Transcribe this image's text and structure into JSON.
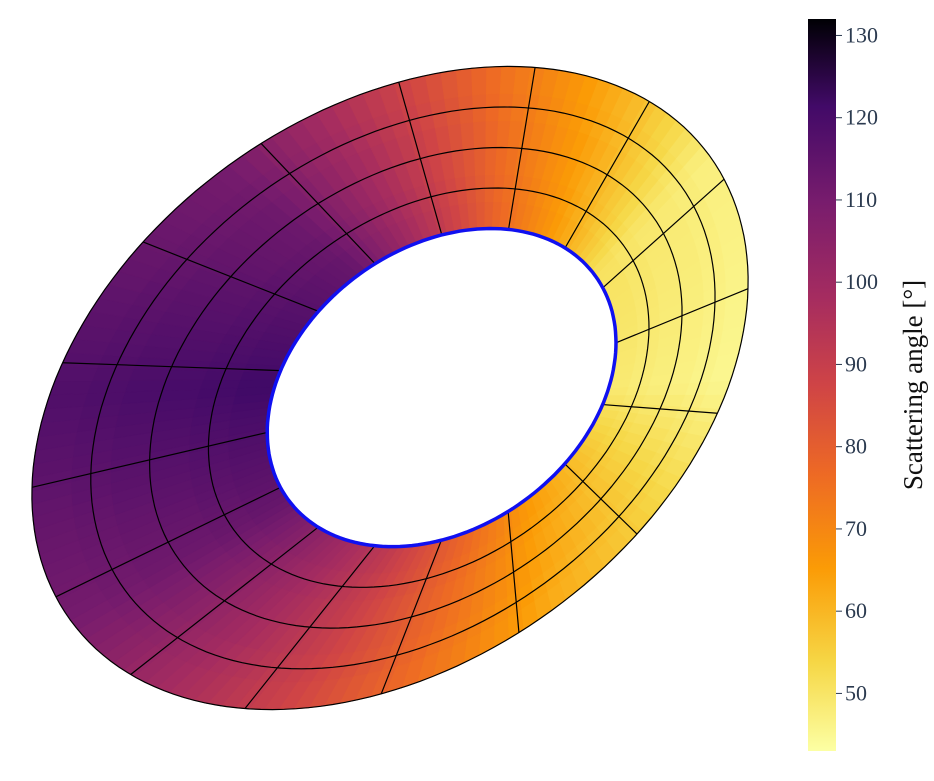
{
  "chart_data": {
    "type": "heatmap",
    "description_type": "annular surface colored by scattering angle",
    "colorscale": "inferno (reversed: light = low, dark = high)",
    "colorbar": {
      "title": "Scattering angle [°]",
      "range": [
        43,
        132
      ],
      "ticks": [
        50,
        60,
        70,
        80,
        90,
        100,
        110,
        120,
        130
      ],
      "tick_labels": [
        "50",
        "60",
        "70",
        "80",
        "90",
        "100",
        "110",
        "120",
        "130"
      ]
    },
    "surface": {
      "angle_at_azimuth": [
        {
          "azimuth_deg": 0,
          "value": 47
        },
        {
          "azimuth_deg": 45,
          "value": 45
        },
        {
          "azimuth_deg": 90,
          "value": 62
        },
        {
          "azimuth_deg": 135,
          "value": 88
        },
        {
          "azimuth_deg": 180,
          "value": 110
        },
        {
          "azimuth_deg": 225,
          "value": 118
        },
        {
          "azimuth_deg": 270,
          "value": 110
        },
        {
          "azimuth_deg": 315,
          "value": 75
        }
      ],
      "radial_grid_lines": 4,
      "angular_grid_lines": 16,
      "inner_boundary_color": "#1010f0",
      "grid_color": "#000000"
    }
  }
}
